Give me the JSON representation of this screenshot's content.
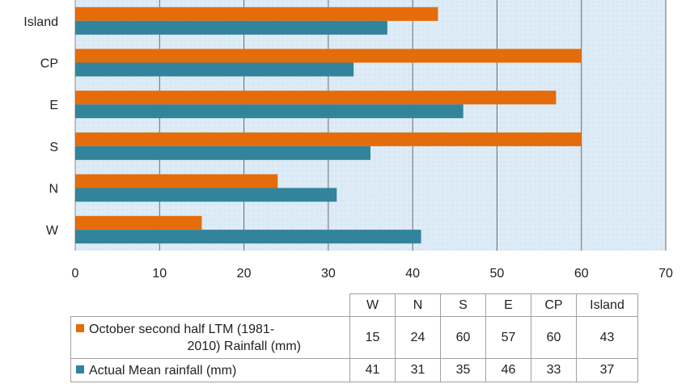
{
  "chart_data": {
    "type": "bar",
    "orientation": "horizontal",
    "categories": [
      "W",
      "N",
      "S",
      "E",
      "CP",
      "Island"
    ],
    "series": [
      {
        "name": "October second half LTM (1981-2010) Rainfall (mm)",
        "name_lines": [
          "October second half LTM (1981-",
          "2010)  Rainfall (mm)"
        ],
        "values": [
          15,
          24,
          60,
          57,
          60,
          43
        ],
        "color": "#E46C0A"
      },
      {
        "name": "Actual Mean rainfall (mm)",
        "name_lines": [
          "Actual Mean rainfall (mm)"
        ],
        "values": [
          41,
          31,
          35,
          46,
          33,
          37
        ],
        "color": "#31849B"
      }
    ],
    "xlim": [
      0,
      70
    ],
    "xticks": [
      "0",
      "10",
      "20",
      "30",
      "40",
      "50",
      "60",
      "70"
    ],
    "grid": true,
    "plot_background": "#DCEBF6",
    "legend": "data-table-below"
  },
  "table": {
    "headers": [
      "W",
      "N",
      "S",
      "E",
      "CP",
      "Island"
    ]
  }
}
